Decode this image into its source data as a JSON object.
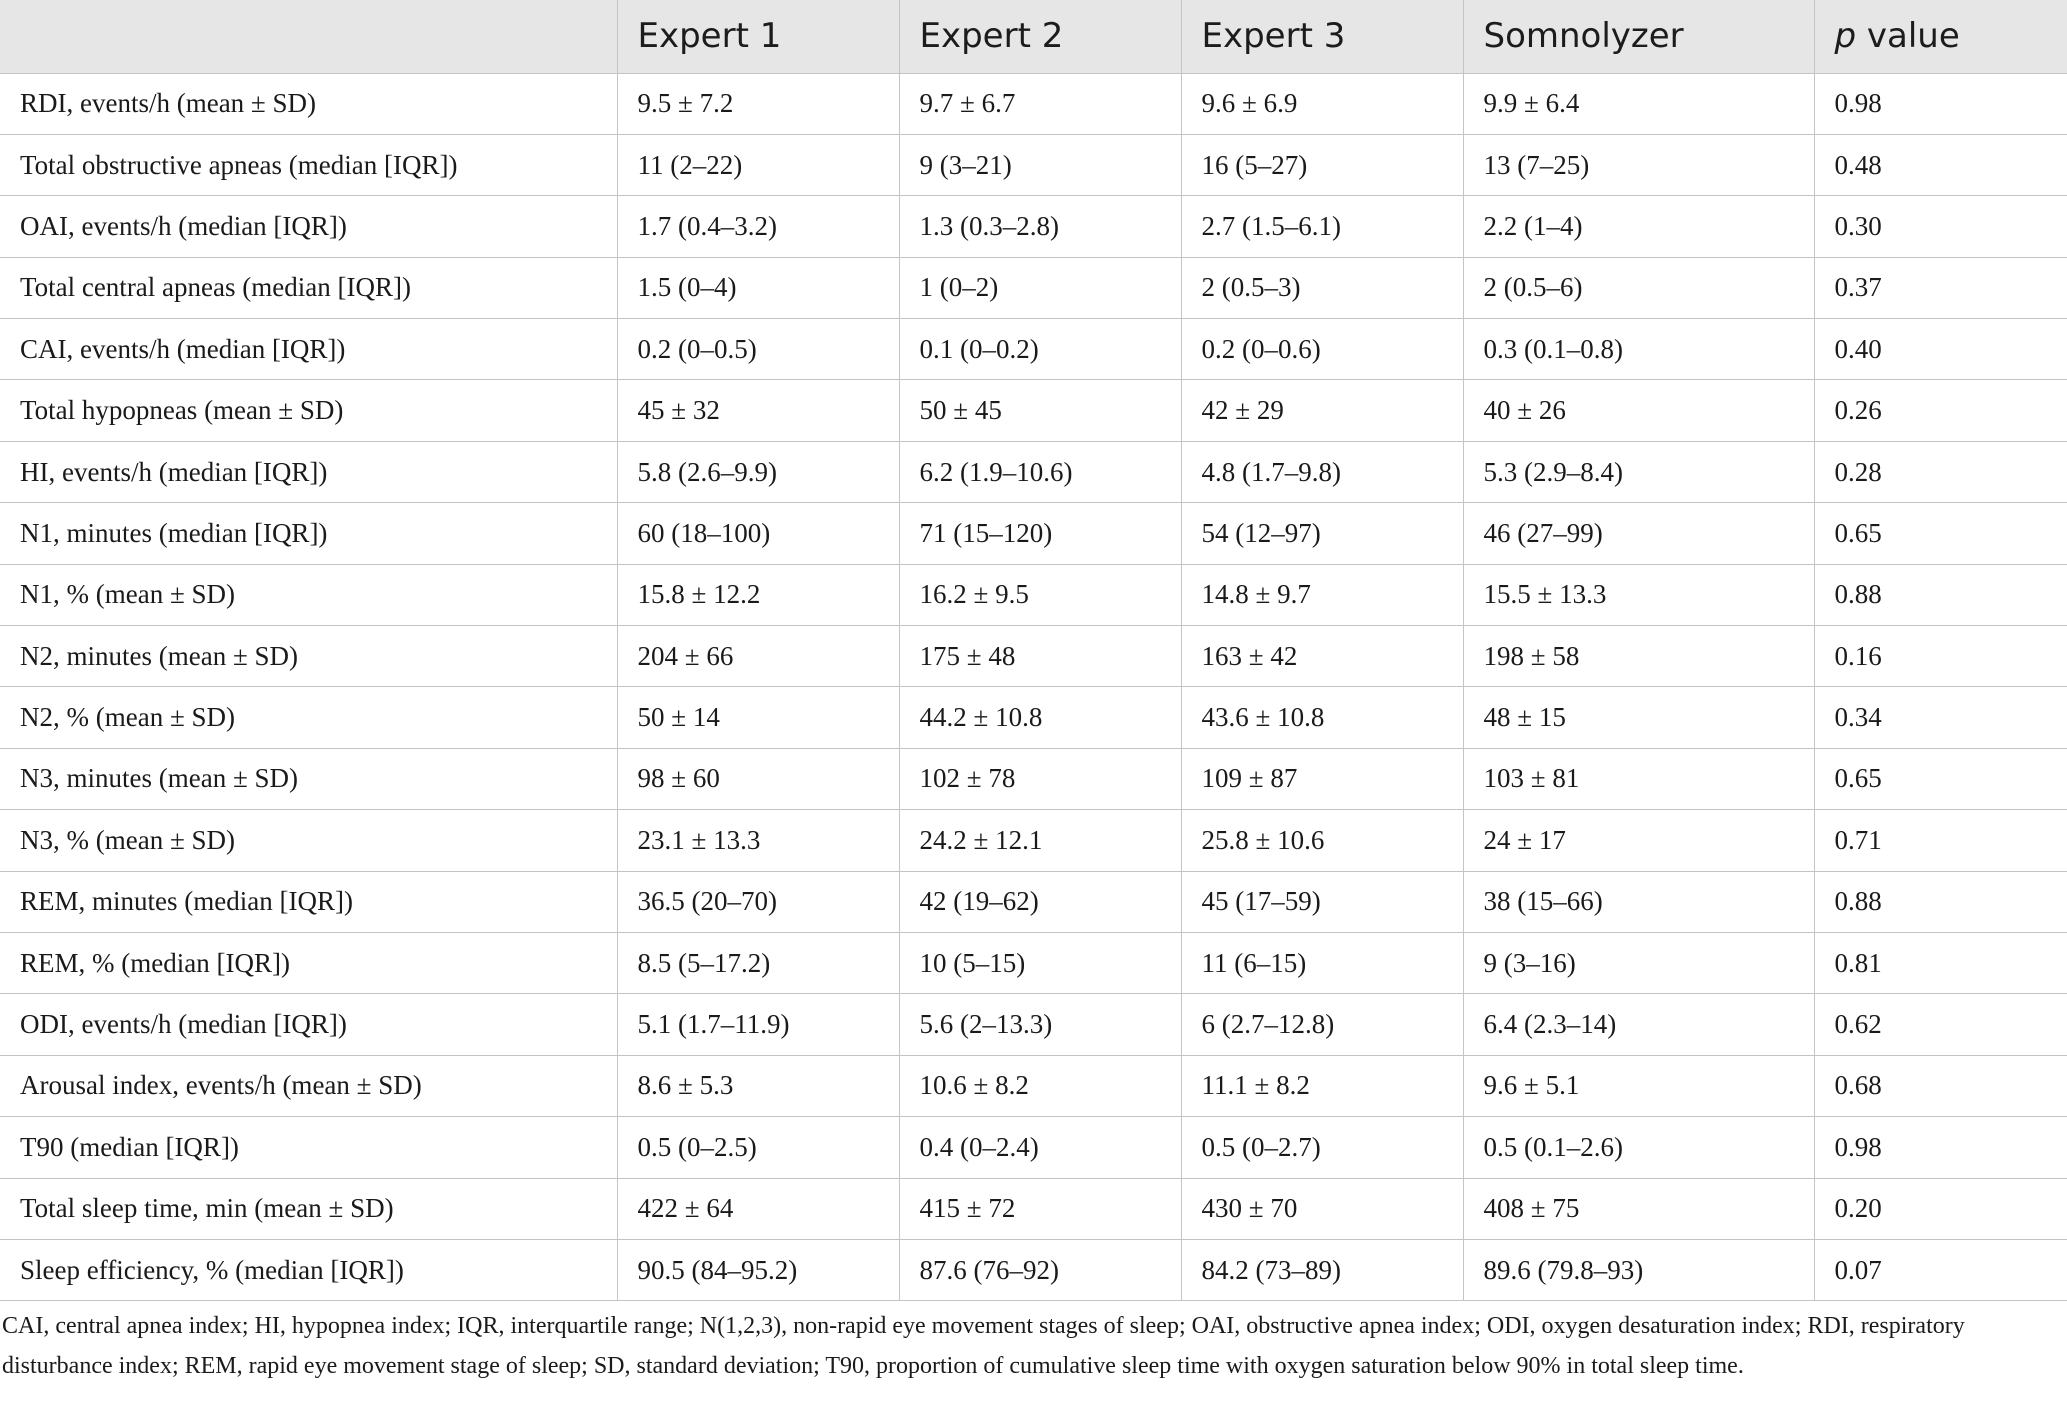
{
  "table": {
    "headers": [
      "",
      "Expert 1",
      "Expert 2",
      "Expert 3",
      "Somnolyzer"
    ],
    "last_header_italic": "p",
    "last_header_rest": " value",
    "rows": [
      [
        "RDI, events/h (mean ± SD)",
        "9.5 ± 7.2",
        "9.7 ± 6.7",
        "9.6 ± 6.9",
        "9.9 ± 6.4",
        "0.98"
      ],
      [
        "Total obstructive apneas (median [IQR])",
        "11 (2–22)",
        "9 (3–21)",
        "16 (5–27)",
        "13 (7–25)",
        "0.48"
      ],
      [
        "OAI, events/h (median [IQR])",
        "1.7 (0.4–3.2)",
        "1.3 (0.3–2.8)",
        "2.7 (1.5–6.1)",
        "2.2 (1–4)",
        "0.30"
      ],
      [
        "Total central apneas (median [IQR])",
        "1.5 (0–4)",
        "1 (0–2)",
        "2 (0.5–3)",
        "2 (0.5–6)",
        "0.37"
      ],
      [
        "CAI, events/h (median [IQR])",
        "0.2 (0–0.5)",
        "0.1 (0–0.2)",
        "0.2 (0–0.6)",
        "0.3 (0.1–0.8)",
        "0.40"
      ],
      [
        "Total hypopneas (mean ± SD)",
        "45 ± 32",
        "50 ± 45",
        "42 ± 29",
        "40 ± 26",
        "0.26"
      ],
      [
        "HI, events/h (median [IQR])",
        "5.8 (2.6–9.9)",
        "6.2 (1.9–10.6)",
        "4.8 (1.7–9.8)",
        "5.3 (2.9–8.4)",
        "0.28"
      ],
      [
        "N1, minutes (median [IQR])",
        "60 (18–100)",
        "71 (15–120)",
        "54 (12–97)",
        "46 (27–99)",
        "0.65"
      ],
      [
        "N1, % (mean ± SD)",
        "15.8 ± 12.2",
        "16.2 ± 9.5",
        "14.8 ± 9.7",
        "15.5 ± 13.3",
        "0.88"
      ],
      [
        "N2, minutes (mean ± SD)",
        "204 ± 66",
        "175 ± 48",
        "163 ± 42",
        "198 ± 58",
        "0.16"
      ],
      [
        "N2, % (mean ± SD)",
        "50 ± 14",
        "44.2 ± 10.8",
        "43.6 ± 10.8",
        "48 ± 15",
        "0.34"
      ],
      [
        "N3, minutes (mean ± SD)",
        "98 ± 60",
        "102 ± 78",
        "109 ± 87",
        "103 ± 81",
        "0.65"
      ],
      [
        "N3, % (mean ± SD)",
        "23.1 ± 13.3",
        "24.2 ± 12.1",
        "25.8 ± 10.6",
        "24 ± 17",
        "0.71"
      ],
      [
        "REM, minutes (median [IQR])",
        "36.5 (20–70)",
        "42 (19–62)",
        "45 (17–59)",
        "38 (15–66)",
        "0.88"
      ],
      [
        "REM, % (median [IQR])",
        "8.5 (5–17.2)",
        "10 (5–15)",
        "11 (6–15)",
        "9 (3–16)",
        "0.81"
      ],
      [
        "ODI, events/h (median [IQR])",
        "5.1 (1.7–11.9)",
        "5.6 (2–13.3)",
        "6 (2.7–12.8)",
        "6.4 (2.3–14)",
        "0.62"
      ],
      [
        "Arousal index, events/h (mean ± SD)",
        "8.6 ± 5.3",
        "10.6 ± 8.2",
        "11.1 ± 8.2",
        "9.6 ± 5.1",
        "0.68"
      ],
      [
        "T90 (median [IQR])",
        "0.5 (0–2.5)",
        "0.4 (0–2.4)",
        "0.5 (0–2.7)",
        "0.5 (0.1–2.6)",
        "0.98"
      ],
      [
        "Total sleep time, min (mean ± SD)",
        "422 ± 64",
        "415 ± 72",
        "430 ± 70",
        "408 ± 75",
        "0.20"
      ],
      [
        "Sleep efficiency, % (median [IQR])",
        "90.5 (84–95.2)",
        "87.6 (76–92)",
        "84.2 (73–89)",
        "89.6 (79.8–93)",
        "0.07"
      ]
    ]
  },
  "footnote": "CAI, central apnea index; HI, hypopnea index; IQR, interquartile range; N(1,2,3), non-rapid eye movement stages of sleep; OAI, obstructive apnea index; ODI, oxygen desaturation index; RDI, respiratory disturbance index; REM, rapid eye movement stage of sleep; SD, standard deviation; T90, proportion of cumulative sleep time with oxygen saturation below 90% in total sleep time."
}
